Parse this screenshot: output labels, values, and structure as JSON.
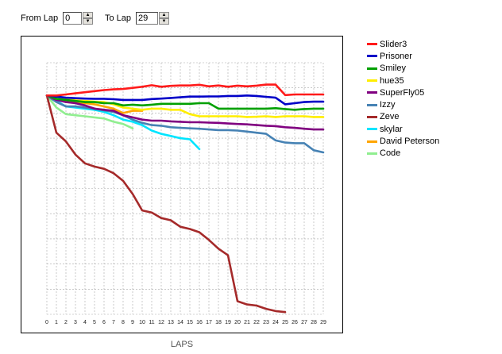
{
  "controls": {
    "from_label": "From Lap",
    "from_value": "0",
    "to_label": "To Lap",
    "to_value": "29"
  },
  "chart_data": {
    "type": "line",
    "title": "",
    "xlabel": "LAPS",
    "ylabel": "",
    "x_ticks": [
      0,
      1,
      2,
      3,
      4,
      5,
      6,
      7,
      8,
      9,
      10,
      11,
      12,
      13,
      14,
      15,
      16,
      17,
      18,
      19,
      20,
      21,
      22,
      23,
      24,
      25,
      26,
      27,
      28,
      29
    ],
    "xlim": [
      0,
      29
    ],
    "ylim": [
      -10,
      1.5
    ],
    "grid": true,
    "legend_position": "right",
    "series": [
      {
        "name": "Slider3",
        "color": "#ff1a1a",
        "x": [
          0,
          1,
          2,
          3,
          4,
          5,
          6,
          7,
          8,
          9,
          10,
          11,
          12,
          13,
          14,
          15,
          16,
          17,
          18,
          19,
          20,
          21,
          22,
          23,
          24,
          25,
          26,
          27,
          28,
          29
        ],
        "y": [
          0,
          0,
          0.05,
          0.1,
          0.15,
          0.2,
          0.25,
          0.28,
          0.3,
          0.35,
          0.4,
          0.47,
          0.4,
          0.44,
          0.46,
          0.46,
          0.49,
          0.42,
          0.46,
          0.4,
          0.45,
          0.42,
          0.45,
          0.5,
          0.5,
          0.02,
          0.05,
          0.05,
          0.05,
          0.05
        ]
      },
      {
        "name": "Prisoner",
        "color": "#0000c8",
        "x": [
          0,
          1,
          2,
          3,
          4,
          5,
          6,
          7,
          8,
          9,
          10,
          11,
          12,
          13,
          14,
          15,
          16,
          17,
          18,
          19,
          20,
          21,
          22,
          23,
          24,
          25,
          26,
          27,
          28,
          29
        ],
        "y": [
          0,
          -0.05,
          -0.1,
          -0.12,
          -0.14,
          -0.15,
          -0.15,
          -0.17,
          -0.2,
          -0.2,
          -0.2,
          -0.16,
          -0.14,
          -0.11,
          -0.08,
          -0.05,
          -0.05,
          -0.04,
          -0.04,
          -0.02,
          -0.02,
          0,
          -0.02,
          -0.06,
          -0.1,
          -0.4,
          -0.35,
          -0.3,
          -0.28,
          -0.28
        ]
      },
      {
        "name": "Smiley",
        "color": "#00a000",
        "x": [
          0,
          1,
          2,
          3,
          4,
          5,
          6,
          7,
          8,
          9,
          10,
          11,
          12,
          13,
          14,
          15,
          16,
          17,
          18,
          19,
          20,
          21,
          22,
          23,
          24,
          25,
          26,
          27,
          28,
          29
        ],
        "y": [
          0,
          -0.15,
          -0.2,
          -0.25,
          -0.3,
          -0.3,
          -0.35,
          -0.35,
          -0.45,
          -0.42,
          -0.45,
          -0.42,
          -0.38,
          -0.38,
          -0.38,
          -0.38,
          -0.35,
          -0.35,
          -0.6,
          -0.6,
          -0.6,
          -0.6,
          -0.6,
          -0.6,
          -0.58,
          -0.62,
          -0.65,
          -0.62,
          -0.6,
          -0.6
        ]
      },
      {
        "name": "hue35",
        "color": "#ffee00",
        "x": [
          0,
          1,
          2,
          3,
          4,
          5,
          6,
          7,
          8,
          9,
          10,
          11,
          12,
          13,
          14,
          15,
          16,
          17,
          18,
          19,
          20,
          21,
          22,
          23,
          24,
          25,
          26,
          27,
          28,
          29
        ],
        "y": [
          0,
          -0.15,
          -0.18,
          -0.22,
          -0.25,
          -0.28,
          -0.3,
          -0.4,
          -0.55,
          -0.6,
          -0.65,
          -0.6,
          -0.6,
          -0.65,
          -0.65,
          -0.85,
          -0.95,
          -0.95,
          -0.95,
          -0.95,
          -0.95,
          -0.98,
          -0.97,
          -0.95,
          -0.98,
          -0.95,
          -0.95,
          -0.95,
          -0.98,
          -0.98
        ]
      },
      {
        "name": "SuperFly05",
        "color": "#800080",
        "x": [
          0,
          1,
          2,
          3,
          4,
          5,
          6,
          7,
          8,
          9,
          10,
          11,
          12,
          13,
          14,
          15,
          16,
          17,
          18,
          19,
          20,
          21,
          22,
          23,
          24,
          25,
          26,
          27,
          28,
          29
        ],
        "y": [
          0,
          -0.2,
          -0.3,
          -0.35,
          -0.45,
          -0.6,
          -0.65,
          -0.7,
          -0.9,
          -1,
          -1.1,
          -1.15,
          -1.15,
          -1.18,
          -1.2,
          -1.22,
          -1.22,
          -1.24,
          -1.25,
          -1.28,
          -1.3,
          -1.32,
          -1.35,
          -1.38,
          -1.4,
          -1.45,
          -1.48,
          -1.52,
          -1.55,
          -1.55
        ]
      },
      {
        "name": "Izzy",
        "color": "#4682b4",
        "x": [
          0,
          1,
          2,
          3,
          4,
          5,
          6,
          7,
          8,
          9,
          10,
          11,
          12,
          13,
          14,
          15,
          16,
          17,
          18,
          19,
          20,
          21,
          22,
          23,
          24,
          25,
          26,
          27,
          28,
          29
        ],
        "y": [
          0,
          -0.3,
          -0.5,
          -0.5,
          -0.55,
          -0.6,
          -0.68,
          -0.75,
          -0.9,
          -1.1,
          -1.25,
          -1.35,
          -1.38,
          -1.45,
          -1.48,
          -1.5,
          -1.52,
          -1.55,
          -1.58,
          -1.58,
          -1.6,
          -1.65,
          -1.7,
          -1.75,
          -2.05,
          -2.15,
          -2.18,
          -2.18,
          -2.5,
          -2.6
        ]
      },
      {
        "name": "Zeve",
        "color": "#a52a2a",
        "x": [
          0,
          1,
          2,
          3,
          4,
          5,
          6,
          7,
          8,
          9,
          10,
          11,
          12,
          13,
          14,
          15,
          16,
          17,
          18,
          19,
          20,
          21,
          22,
          23,
          24,
          25
        ],
        "y": [
          0,
          -1.7,
          -2.1,
          -2.7,
          -3.1,
          -3.25,
          -3.35,
          -3.55,
          -3.9,
          -4.5,
          -5.25,
          -5.35,
          -5.6,
          -5.7,
          -6,
          -6.1,
          -6.25,
          -6.6,
          -7,
          -7.3,
          -9.4,
          -9.55,
          -9.6,
          -9.75,
          -9.85,
          -9.9
        ]
      },
      {
        "name": "skylar",
        "color": "#00e5ff",
        "x": [
          0,
          1,
          2,
          3,
          4,
          5,
          6,
          7,
          8,
          9,
          10,
          11,
          12,
          13,
          14,
          15,
          16
        ],
        "y": [
          0,
          -0.25,
          -0.5,
          -0.55,
          -0.6,
          -0.65,
          -0.75,
          -0.9,
          -1.1,
          -1.2,
          -1.35,
          -1.6,
          -1.75,
          -1.85,
          -1.95,
          -2.0,
          -2.45
        ]
      },
      {
        "name": "David Peterson",
        "color": "#ffa500",
        "x": [
          0,
          1,
          2,
          3,
          4,
          5,
          6,
          7,
          8,
          9,
          10
        ],
        "y": [
          0,
          -0.15,
          -0.3,
          -0.32,
          -0.35,
          -0.4,
          -0.5,
          -0.6,
          -0.8,
          -0.7,
          -0.7
        ]
      },
      {
        "name": "Code",
        "color": "#90ee90",
        "x": [
          0,
          1,
          2,
          3,
          4,
          5,
          6,
          7,
          8,
          9
        ],
        "y": [
          0,
          -0.55,
          -0.85,
          -0.9,
          -0.95,
          -1.0,
          -1.05,
          -1.2,
          -1.3,
          -1.5
        ]
      }
    ]
  }
}
